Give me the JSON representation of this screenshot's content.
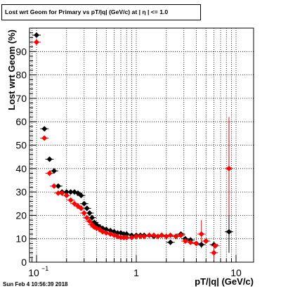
{
  "window": {
    "footer": "Sun Feb  4 10:56:39 2018"
  },
  "chart_data": {
    "type": "scatter",
    "title": "Lost wrt Geom for Primary vs pT/|q| (GeV/c) at |  η | <= 1.0",
    "xlabel": "pT/|q| (GeV/c)",
    "ylabel": "Lost wrt Geom (%)",
    "xscale": "log",
    "xlim": [
      0.085,
      15
    ],
    "ylim": [
      0,
      100
    ],
    "grid": true,
    "x_ticks": [
      {
        "value": 0.1,
        "base": "10",
        "exp": "−1"
      },
      {
        "value": 1,
        "base": "1",
        "exp": ""
      },
      {
        "value": 10,
        "base": "10",
        "exp": ""
      }
    ],
    "y_ticks": [
      0,
      10,
      20,
      30,
      40,
      50,
      60,
      70,
      80,
      90
    ],
    "colors": {
      "series_black": "#000000",
      "series_red": "#ff0000",
      "grid": "#000000"
    },
    "series": [
      {
        "color": "#000000",
        "marker": "diamond",
        "points": [
          [
            0.1,
            97
          ],
          [
            0.12,
            57
          ],
          [
            0.135,
            44
          ],
          [
            0.15,
            39
          ],
          [
            0.165,
            32.5
          ],
          [
            0.18,
            30
          ],
          [
            0.2,
            30
          ],
          [
            0.22,
            30
          ],
          [
            0.24,
            30
          ],
          [
            0.26,
            29.5
          ],
          [
            0.28,
            28.5
          ],
          [
            0.3,
            25
          ],
          [
            0.32,
            23
          ],
          [
            0.34,
            21
          ],
          [
            0.36,
            19
          ],
          [
            0.38,
            17
          ],
          [
            0.4,
            16
          ],
          [
            0.43,
            15
          ],
          [
            0.46,
            14.5
          ],
          [
            0.5,
            14
          ],
          [
            0.55,
            13.5
          ],
          [
            0.6,
            13
          ],
          [
            0.65,
            12.5
          ],
          [
            0.7,
            12.5
          ],
          [
            0.75,
            12
          ],
          [
            0.8,
            12
          ],
          [
            0.9,
            11.5
          ],
          [
            1.0,
            11.5
          ],
          [
            1.1,
            11.5
          ],
          [
            1.2,
            11.5
          ],
          [
            1.35,
            11.5
          ],
          [
            1.5,
            11
          ],
          [
            1.65,
            11
          ],
          [
            1.8,
            11.5
          ],
          [
            2.0,
            11
          ],
          [
            2.2,
            8.5
          ],
          [
            2.5,
            11
          ],
          [
            2.8,
            12
          ],
          [
            3.1,
            10
          ],
          [
            3.5,
            9.5
          ],
          [
            4.0,
            8
          ],
          [
            4.5,
            7.5
          ],
          [
            5.0,
            9
          ],
          [
            6.0,
            7.5
          ],
          [
            8.5,
            13
          ]
        ],
        "errors": [
          [
            8.5,
            4,
            60
          ]
        ]
      },
      {
        "color": "#ff0000",
        "marker": "diamond",
        "points": [
          [
            0.1,
            94
          ],
          [
            0.12,
            53
          ],
          [
            0.135,
            38
          ],
          [
            0.15,
            32.5
          ],
          [
            0.165,
            29.5
          ],
          [
            0.18,
            29.5
          ],
          [
            0.2,
            28.5
          ],
          [
            0.22,
            26.5
          ],
          [
            0.24,
            25
          ],
          [
            0.26,
            24
          ],
          [
            0.28,
            23
          ],
          [
            0.3,
            21
          ],
          [
            0.32,
            19
          ],
          [
            0.34,
            17.5
          ],
          [
            0.36,
            16
          ],
          [
            0.38,
            15
          ],
          [
            0.4,
            14.5
          ],
          [
            0.43,
            14
          ],
          [
            0.46,
            13
          ],
          [
            0.5,
            12.5
          ],
          [
            0.55,
            12
          ],
          [
            0.6,
            11.5
          ],
          [
            0.65,
            11
          ],
          [
            0.7,
            10.5
          ],
          [
            0.75,
            10.5
          ],
          [
            0.8,
            10.5
          ],
          [
            0.9,
            10.5
          ],
          [
            1.0,
            11
          ],
          [
            1.1,
            11
          ],
          [
            1.2,
            11
          ],
          [
            1.35,
            11.5
          ],
          [
            1.5,
            11.5
          ],
          [
            1.65,
            11
          ],
          [
            1.8,
            11.5
          ],
          [
            2.0,
            11
          ],
          [
            2.2,
            11.5
          ],
          [
            2.5,
            11
          ],
          [
            2.8,
            11.5
          ],
          [
            3.1,
            9
          ],
          [
            3.5,
            8.5
          ],
          [
            4.0,
            8
          ],
          [
            4.5,
            12
          ],
          [
            5.0,
            9
          ],
          [
            6.0,
            4
          ],
          [
            6.2,
            7
          ],
          [
            8.5,
            40
          ]
        ],
        "errors": [
          [
            4.5,
            6,
            18
          ],
          [
            6.0,
            1,
            8
          ],
          [
            8.5,
            20,
            62
          ]
        ]
      }
    ]
  }
}
